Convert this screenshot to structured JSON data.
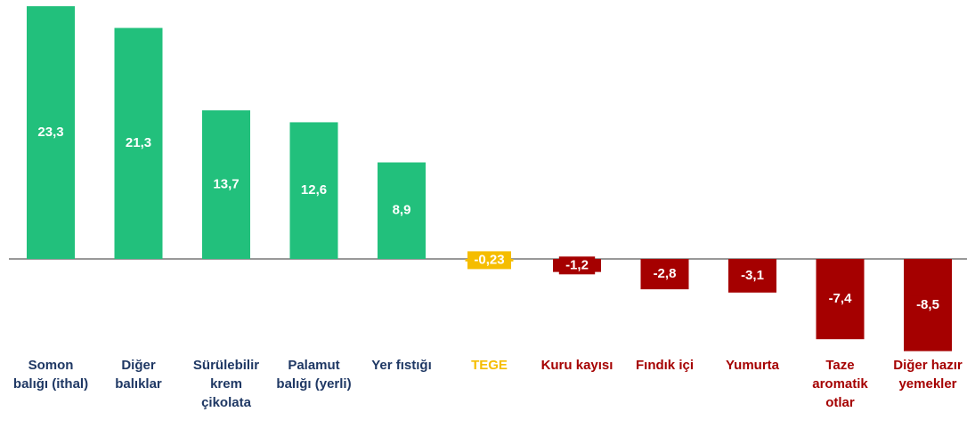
{
  "chart_data": {
    "type": "bar",
    "categories": [
      "Somon balığı (ithal)",
      "Diğer balıklar",
      "Sürülebilir krem çikolata",
      "Palamut balığı (yerli)",
      "Yer fıstığı",
      "TEGE",
      "Kuru kayısı",
      "Fındık içi",
      "Yumurta",
      "Taze aromatik otlar",
      "Diğer hazır yemekler"
    ],
    "values": [
      23.3,
      21.3,
      13.7,
      12.6,
      8.9,
      -0.23,
      -1.2,
      -2.8,
      -3.1,
      -7.4,
      -8.5
    ],
    "value_labels": [
      "23,3",
      "21,3",
      "13,7",
      "12,6",
      "8,9",
      "-0,23",
      "-1,2",
      "-2,8",
      "-3,1",
      "-7,4",
      "-8,5"
    ],
    "colors": [
      "#22c07c",
      "#22c07c",
      "#22c07c",
      "#22c07c",
      "#22c07c",
      "#f5bd00",
      "#a50000",
      "#a50000",
      "#a50000",
      "#a50000",
      "#a50000"
    ],
    "label_colors": [
      "#1f3864",
      "#1f3864",
      "#1f3864",
      "#1f3864",
      "#1f3864",
      "#f5bd00",
      "#a50000",
      "#a50000",
      "#a50000",
      "#a50000",
      "#a50000"
    ]
  }
}
